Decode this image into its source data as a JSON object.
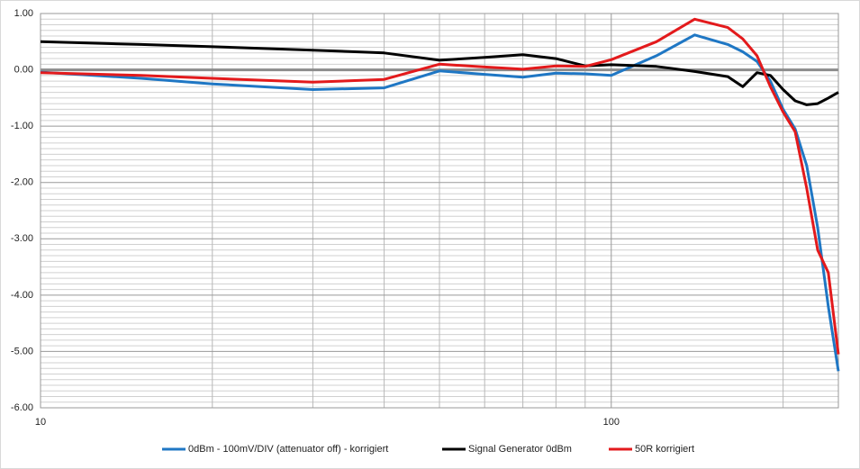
{
  "chart_data": {
    "type": "line",
    "log_x": true,
    "grid": true,
    "minor_grid": true,
    "legend": "bottom",
    "x": [
      10,
      15,
      20,
      30,
      40,
      50,
      60,
      70,
      80,
      90,
      100,
      120,
      140,
      160,
      170,
      180,
      190,
      200,
      210,
      220,
      230,
      240,
      250
    ],
    "series": [
      {
        "name": "0dBm - 100mV/DIV (attenuator off) - korrigiert",
        "color": "#1f77c4",
        "values": [
          -0.04,
          -0.15,
          -0.25,
          -0.35,
          -0.32,
          -0.02,
          -0.08,
          -0.13,
          -0.06,
          -0.07,
          -0.1,
          0.25,
          0.62,
          0.45,
          0.32,
          0.15,
          -0.2,
          -0.7,
          -1.05,
          -1.7,
          -2.8,
          -4.2,
          -5.35
        ]
      },
      {
        "name": "Signal Generator 0dBm",
        "color": "#000000",
        "values": [
          0.5,
          0.45,
          0.41,
          0.35,
          0.3,
          0.17,
          0.22,
          0.27,
          0.2,
          0.07,
          0.09,
          0.06,
          -0.03,
          -0.12,
          -0.3,
          -0.05,
          -0.1,
          -0.35,
          -0.55,
          -0.62,
          -0.6,
          -0.5,
          -0.4
        ]
      },
      {
        "name": "50R korrigiert",
        "color": "#e31a1c",
        "values": [
          -0.05,
          -0.1,
          -0.15,
          -0.22,
          -0.17,
          0.1,
          0.05,
          0.01,
          0.07,
          0.06,
          0.18,
          0.5,
          0.9,
          0.75,
          0.55,
          0.25,
          -0.3,
          -0.75,
          -1.1,
          -2.1,
          -3.2,
          -3.6,
          -5.05
        ]
      }
    ],
    "xlim": [
      10,
      250
    ],
    "xticks": [
      10,
      100
    ],
    "ylim": [
      -6,
      1
    ],
    "yticks": [
      {
        "value": -6,
        "label": "-6.00"
      },
      {
        "value": -5,
        "label": "-5.00"
      },
      {
        "value": -4,
        "label": "-4.00"
      },
      {
        "value": -3,
        "label": "-3.00"
      },
      {
        "value": -2,
        "label": "-2.00"
      },
      {
        "value": -1,
        "label": "-1.00"
      },
      {
        "value": 0,
        "label": "0.00"
      },
      {
        "value": 1,
        "label": "1.00"
      }
    ]
  }
}
